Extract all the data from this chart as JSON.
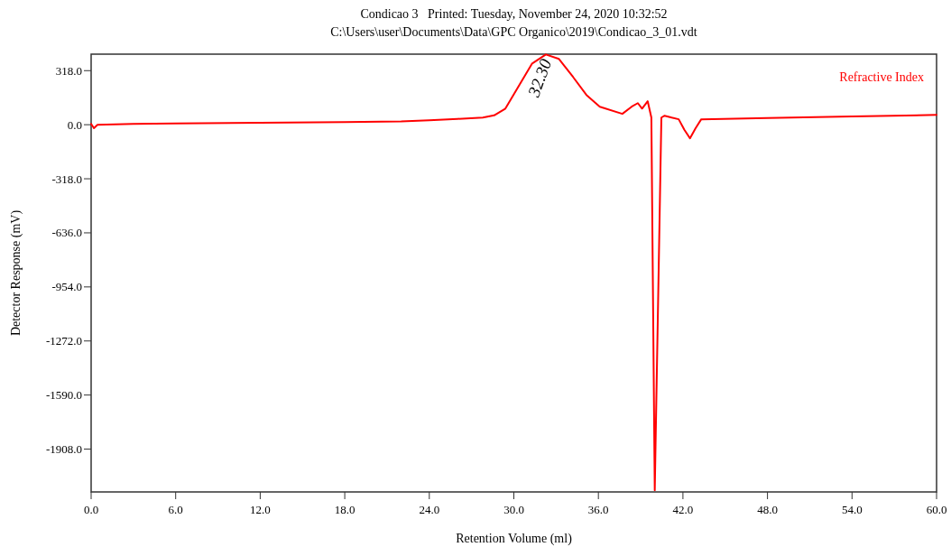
{
  "chart_data": {
    "type": "line",
    "title": "Condicao 3   Printed: Tuesday, November 24, 2020 10:32:52",
    "subtitle": "C:\\Users\\user\\Documents\\Data\\GPC Organico\\2019\\Condicao_3_01.vdt",
    "xlabel": "Retention Volume (ml)",
    "ylabel": "Detector Response (mV)",
    "series": [
      {
        "name": "Refractive Index",
        "color": "#ff0000",
        "x": [
          0,
          0.2,
          0.45,
          3,
          6,
          12,
          18,
          22,
          24,
          26,
          27.8,
          28.6,
          29.4,
          30.35,
          31.3,
          32.27,
          33.2,
          34.2,
          35.15,
          36.1,
          37.7,
          38.36,
          38.8,
          39.1,
          39.5,
          39.76,
          40.0,
          40.47,
          40.7,
          41.2,
          41.7,
          42.1,
          42.5,
          42.9,
          43.3,
          48,
          54,
          60
        ],
        "values": [
          5,
          -20,
          0,
          5,
          8,
          12,
          16,
          20,
          26,
          34,
          42,
          55,
          95,
          228,
          360,
          413,
          387,
          281,
          175,
          106,
          64,
          106,
          127,
          95,
          138,
          42,
          -2150,
          42,
          53,
          42,
          32,
          -30,
          -80,
          -20,
          32,
          40,
          48,
          58
        ]
      }
    ],
    "xlim": [
      0,
      60
    ],
    "xticks": [
      {
        "value": 0,
        "label": "0.0"
      },
      {
        "value": 6,
        "label": "6.0"
      },
      {
        "value": 12,
        "label": "12.0"
      },
      {
        "value": 18,
        "label": "18.0"
      },
      {
        "value": 24,
        "label": "24.0"
      },
      {
        "value": 30,
        "label": "30.0"
      },
      {
        "value": 36,
        "label": "36.0"
      },
      {
        "value": 42,
        "label": "42.0"
      },
      {
        "value": 48,
        "label": "48.0"
      },
      {
        "value": 54,
        "label": "54.0"
      },
      {
        "value": 60,
        "label": "60.0"
      }
    ],
    "ylim": [
      -2160,
      415
    ],
    "yticks": [
      {
        "value": 318,
        "label": "318.0"
      },
      {
        "value": 0,
        "label": "0.0"
      },
      {
        "value": -318,
        "label": "-318.0"
      },
      {
        "value": -636,
        "label": "-636.0"
      },
      {
        "value": -954,
        "label": "-954.0"
      },
      {
        "value": -1272,
        "label": "-1272.0"
      },
      {
        "value": -1590,
        "label": "-1590.0"
      },
      {
        "value": -1908,
        "label": "-1908.0"
      }
    ],
    "annotations": [
      {
        "text": "32.30",
        "x": 32.3,
        "y": 413
      }
    ],
    "legend": "top right",
    "grid": false,
    "marker": "none",
    "line_style": "solid"
  }
}
